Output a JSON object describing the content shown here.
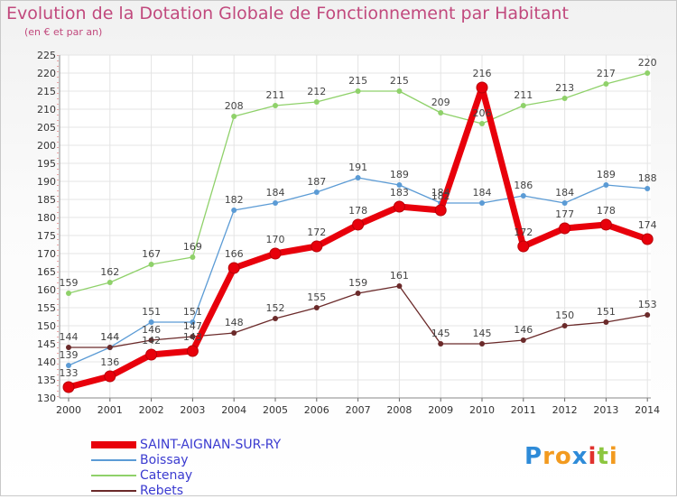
{
  "chart_data": {
    "type": "line",
    "title": "Evolution de la Dotation Globale de Fonctionnement par Habitant",
    "subtitle": "(en € et par an)",
    "x": [
      "2000",
      "2001",
      "2002",
      "2003",
      "2004",
      "2005",
      "2006",
      "2007",
      "2008",
      "2009",
      "2010",
      "2011",
      "2012",
      "2013",
      "2014"
    ],
    "ylim": [
      130,
      225
    ],
    "yticks": [
      130,
      135,
      140,
      145,
      150,
      155,
      160,
      165,
      170,
      175,
      180,
      185,
      190,
      195,
      200,
      205,
      210,
      215,
      220,
      225
    ],
    "grid": true,
    "series": [
      {
        "name": "SAINT-AIGNAN-SUR-RY",
        "color": "#e8000b",
        "bold": true,
        "values": [
          133,
          136,
          142,
          143,
          166,
          170,
          172,
          178,
          183,
          182,
          216,
          172,
          177,
          178,
          174
        ]
      },
      {
        "name": "Boissay",
        "color": "#5b9bd5",
        "bold": false,
        "values": [
          139,
          144,
          151,
          151,
          182,
          184,
          187,
          191,
          189,
          184,
          184,
          186,
          184,
          189,
          188
        ]
      },
      {
        "name": "Catenay",
        "color": "#8fd16a",
        "bold": false,
        "values": [
          159,
          162,
          167,
          169,
          208,
          211,
          212,
          215,
          215,
          209,
          206,
          211,
          213,
          217,
          220
        ]
      },
      {
        "name": "Rebets",
        "color": "#6b2a2a",
        "bold": false,
        "values": [
          144,
          144,
          146,
          147,
          148,
          152,
          155,
          159,
          161,
          145,
          145,
          146,
          150,
          151,
          153
        ]
      }
    ]
  },
  "logo": {
    "letters": [
      "P",
      "r",
      "o",
      "x",
      "i",
      "t",
      "i"
    ],
    "colors": [
      "#2e8bd8",
      "#f29a1f",
      "#f29a1f",
      "#2e8bd8",
      "#e0322e",
      "#8cc63f",
      "#f29a1f"
    ]
  }
}
